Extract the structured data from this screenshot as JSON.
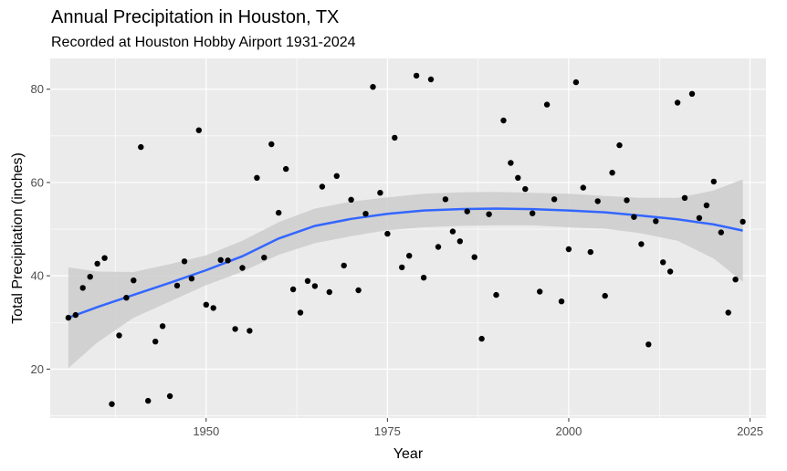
{
  "chart_data": {
    "type": "scatter",
    "title": "Annual Precipitation in Houston, TX",
    "subtitle": "Recorded at Houston Hobby Airport 1931-2024",
    "xlabel": "Year",
    "ylabel": "Total Precipitation (inches)",
    "xlim": [
      1928.5,
      2027.2
    ],
    "ylim": [
      9.5,
      86.6
    ],
    "x_ticks": [
      1950,
      1975,
      2000,
      2025
    ],
    "y_ticks": [
      20,
      40,
      60,
      80
    ],
    "grid": true,
    "legend": "none",
    "colors": {
      "panel": "#ebebeb",
      "grid_major": "#ffffff",
      "points": "#000000",
      "smooth_line": "#3366ff",
      "confidence_band": "#cccccc"
    },
    "points": [
      [
        1931,
        31.0
      ],
      [
        1932,
        31.6
      ],
      [
        1933,
        37.4
      ],
      [
        1934,
        39.8
      ],
      [
        1935,
        42.6
      ],
      [
        1936,
        43.8
      ],
      [
        1937,
        12.5
      ],
      [
        1938,
        27.2
      ],
      [
        1939,
        35.3
      ],
      [
        1940,
        39.0
      ],
      [
        1941,
        67.6
      ],
      [
        1942,
        13.2
      ],
      [
        1943,
        25.9
      ],
      [
        1944,
        29.2
      ],
      [
        1945,
        14.2
      ],
      [
        1946,
        37.9
      ],
      [
        1947,
        43.1
      ],
      [
        1948,
        39.4
      ],
      [
        1949,
        71.2
      ],
      [
        1950,
        33.8
      ],
      [
        1951,
        33.1
      ],
      [
        1952,
        43.4
      ],
      [
        1953,
        43.3
      ],
      [
        1954,
        28.6
      ],
      [
        1955,
        41.7
      ],
      [
        1956,
        28.2
      ],
      [
        1957,
        61.0
      ],
      [
        1958,
        43.9
      ],
      [
        1959,
        68.2
      ],
      [
        1960,
        53.5
      ],
      [
        1961,
        62.9
      ],
      [
        1962,
        37.1
      ],
      [
        1963,
        32.1
      ],
      [
        1964,
        38.9
      ],
      [
        1965,
        37.8
      ],
      [
        1966,
        59.1
      ],
      [
        1967,
        36.5
      ],
      [
        1968,
        61.4
      ],
      [
        1969,
        42.2
      ],
      [
        1970,
        56.3
      ],
      [
        1971,
        36.9
      ],
      [
        1972,
        53.3
      ],
      [
        1973,
        80.5
      ],
      [
        1974,
        57.8
      ],
      [
        1975,
        49.0
      ],
      [
        1976,
        69.6
      ],
      [
        1977,
        41.8
      ],
      [
        1978,
        44.3
      ],
      [
        1979,
        82.9
      ],
      [
        1980,
        39.6
      ],
      [
        1981,
        82.1
      ],
      [
        1982,
        46.2
      ],
      [
        1983,
        56.4
      ],
      [
        1984,
        49.5
      ],
      [
        1985,
        47.4
      ],
      [
        1986,
        53.8
      ],
      [
        1987,
        44.0
      ],
      [
        1988,
        26.5
      ],
      [
        1989,
        53.2
      ],
      [
        1990,
        35.9
      ],
      [
        1991,
        73.3
      ],
      [
        1992,
        64.2
      ],
      [
        1993,
        61.0
      ],
      [
        1994,
        58.6
      ],
      [
        1995,
        53.4
      ],
      [
        1996,
        36.6
      ],
      [
        1997,
        76.7
      ],
      [
        1998,
        56.4
      ],
      [
        1999,
        34.5
      ],
      [
        2000,
        45.7
      ],
      [
        2001,
        81.5
      ],
      [
        2002,
        58.9
      ],
      [
        2003,
        45.1
      ],
      [
        2004,
        56.0
      ],
      [
        2005,
        35.7
      ],
      [
        2006,
        62.1
      ],
      [
        2007,
        68.0
      ],
      [
        2008,
        56.2
      ],
      [
        2009,
        52.6
      ],
      [
        2010,
        46.8
      ],
      [
        2011,
        25.3
      ],
      [
        2012,
        51.7
      ],
      [
        2013,
        42.9
      ],
      [
        2014,
        40.9
      ],
      [
        2015,
        77.1
      ],
      [
        2016,
        56.7
      ],
      [
        2017,
        79.0
      ],
      [
        2018,
        52.4
      ],
      [
        2019,
        55.1
      ],
      [
        2020,
        60.2
      ],
      [
        2021,
        49.3
      ],
      [
        2022,
        32.1
      ],
      [
        2023,
        39.2
      ],
      [
        2024,
        51.6
      ]
    ],
    "smooth_fit": [
      [
        1931,
        31.0
      ],
      [
        1935,
        33.3
      ],
      [
        1940,
        35.9
      ],
      [
        1945,
        38.5
      ],
      [
        1950,
        41.2
      ],
      [
        1955,
        44.2
      ],
      [
        1960,
        48.0
      ],
      [
        1965,
        50.7
      ],
      [
        1970,
        52.2
      ],
      [
        1975,
        53.3
      ],
      [
        1980,
        54.0
      ],
      [
        1985,
        54.3
      ],
      [
        1990,
        54.4
      ],
      [
        1995,
        54.3
      ],
      [
        2000,
        54.0
      ],
      [
        2005,
        53.6
      ],
      [
        2010,
        52.9
      ],
      [
        2015,
        52.1
      ],
      [
        2020,
        51.0
      ],
      [
        2024,
        49.7
      ]
    ],
    "confidence_upper": [
      [
        1931,
        41.8
      ],
      [
        1935,
        40.9
      ],
      [
        1940,
        40.8
      ],
      [
        1945,
        42.5
      ],
      [
        1950,
        44.4
      ],
      [
        1955,
        47.5
      ],
      [
        1960,
        51.5
      ],
      [
        1965,
        54.4
      ],
      [
        1970,
        55.9
      ],
      [
        1975,
        56.8
      ],
      [
        1980,
        57.6
      ],
      [
        1985,
        57.9
      ],
      [
        1990,
        58.0
      ],
      [
        1995,
        57.8
      ],
      [
        2000,
        57.6
      ],
      [
        2005,
        57.1
      ],
      [
        2010,
        56.7
      ],
      [
        2015,
        56.7
      ],
      [
        2020,
        58.3
      ],
      [
        2024,
        60.7
      ]
    ],
    "confidence_lower": [
      [
        1931,
        20.2
      ],
      [
        1935,
        25.7
      ],
      [
        1940,
        31.0
      ],
      [
        1945,
        34.5
      ],
      [
        1950,
        38.0
      ],
      [
        1955,
        40.9
      ],
      [
        1960,
        44.5
      ],
      [
        1965,
        47.0
      ],
      [
        1970,
        48.5
      ],
      [
        1975,
        49.8
      ],
      [
        1980,
        50.4
      ],
      [
        1985,
        50.7
      ],
      [
        1990,
        50.8
      ],
      [
        1995,
        50.8
      ],
      [
        2000,
        50.4
      ],
      [
        2005,
        50.1
      ],
      [
        2010,
        49.1
      ],
      [
        2015,
        47.5
      ],
      [
        2020,
        43.7
      ],
      [
        2024,
        38.7
      ]
    ]
  }
}
